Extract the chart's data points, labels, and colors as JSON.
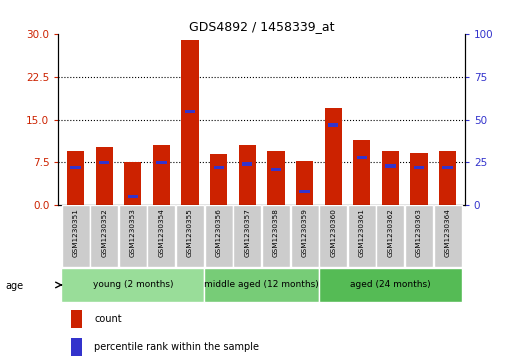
{
  "title": "GDS4892 / 1458339_at",
  "samples": [
    "GSM1230351",
    "GSM1230352",
    "GSM1230353",
    "GSM1230354",
    "GSM1230355",
    "GSM1230356",
    "GSM1230357",
    "GSM1230358",
    "GSM1230359",
    "GSM1230360",
    "GSM1230361",
    "GSM1230362",
    "GSM1230363",
    "GSM1230364"
  ],
  "counts": [
    9.5,
    10.2,
    7.5,
    10.5,
    29.0,
    9.0,
    10.5,
    9.5,
    7.8,
    17.0,
    11.5,
    9.5,
    9.2,
    9.5
  ],
  "percentile": [
    22,
    25,
    5,
    25,
    55,
    22,
    24,
    21,
    8,
    47,
    28,
    23,
    22,
    22
  ],
  "ylim_left": [
    0,
    30
  ],
  "ylim_right": [
    0,
    100
  ],
  "yticks_left": [
    0,
    7.5,
    15,
    22.5,
    30
  ],
  "yticks_right": [
    0,
    25,
    50,
    75,
    100
  ],
  "bar_color": "#cc2200",
  "marker_color": "#3333cc",
  "group_labels": [
    "young (2 months)",
    "middle aged (12 months)",
    "aged (24 months)"
  ],
  "group_ranges": [
    [
      0,
      5
    ],
    [
      5,
      9
    ],
    [
      9,
      14
    ]
  ],
  "group_colors": [
    "#99dd99",
    "#77cc77",
    "#55bb55"
  ],
  "legend_count": "count",
  "legend_pct": "percentile rank within the sample",
  "age_label": "age"
}
